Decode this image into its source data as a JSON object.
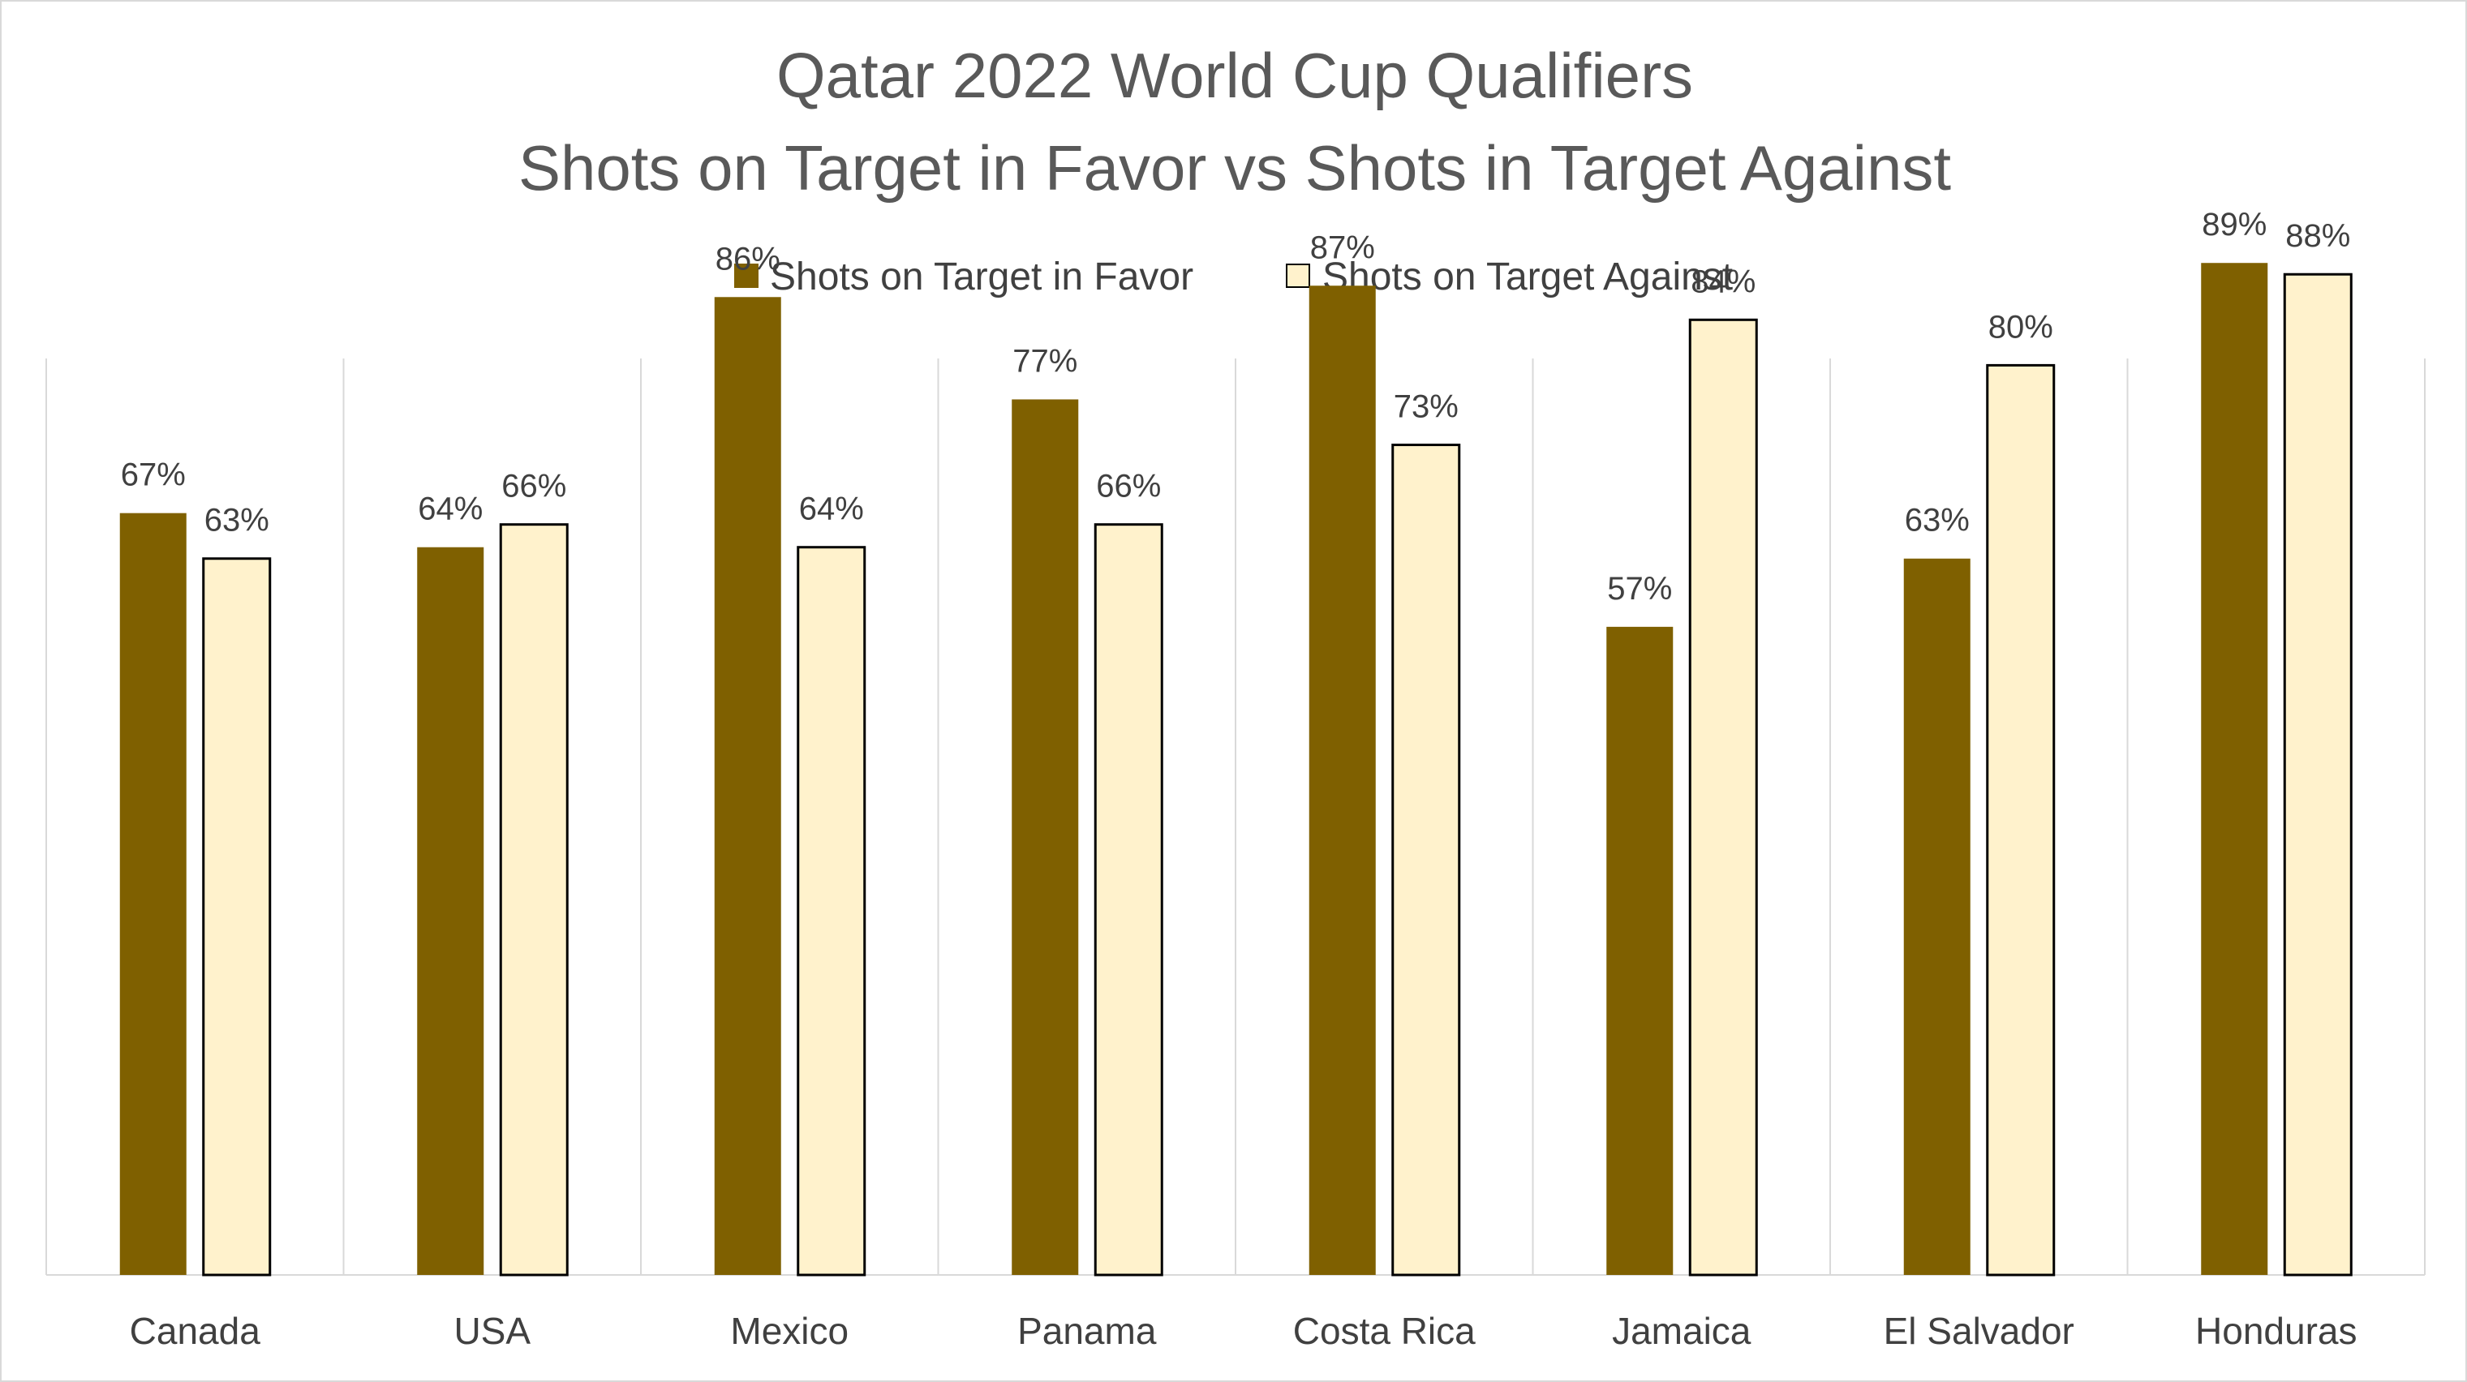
{
  "colors": {
    "favor": "#7f6000",
    "against": "#fff2cc",
    "against_stroke": "#000000",
    "grid": "#d9d9d9",
    "title": "#595959",
    "text": "#404040"
  },
  "chart_data": {
    "type": "bar",
    "title": "Qatar 2022 World Cup Qualifiers",
    "subtitle": "Shots on Target in Favor vs Shots in Target Against",
    "categories": [
      "Canada",
      "USA",
      "Mexico",
      "Panama",
      "Costa Rica",
      "Jamaica",
      "El Salvador",
      "Honduras"
    ],
    "series": [
      {
        "name": "Shots on Target in Favor",
        "values": [
          67,
          64,
          86,
          77,
          87,
          57,
          63,
          89
        ],
        "labels": [
          "67%",
          "64%",
          "86%",
          "77%",
          "87%",
          "57%",
          "63%",
          "89%"
        ]
      },
      {
        "name": "Shots on Target Against",
        "values": [
          63,
          66,
          64,
          66,
          73,
          84,
          80,
          88
        ],
        "labels": [
          "63%",
          "66%",
          "64%",
          "66%",
          "73%",
          "84%",
          "80%",
          "88%"
        ]
      }
    ],
    "ylim": [
      0,
      100
    ],
    "value_format": "percent",
    "legend_position": "top",
    "grid": "vertical category separators",
    "xlabel": "",
    "ylabel": ""
  }
}
